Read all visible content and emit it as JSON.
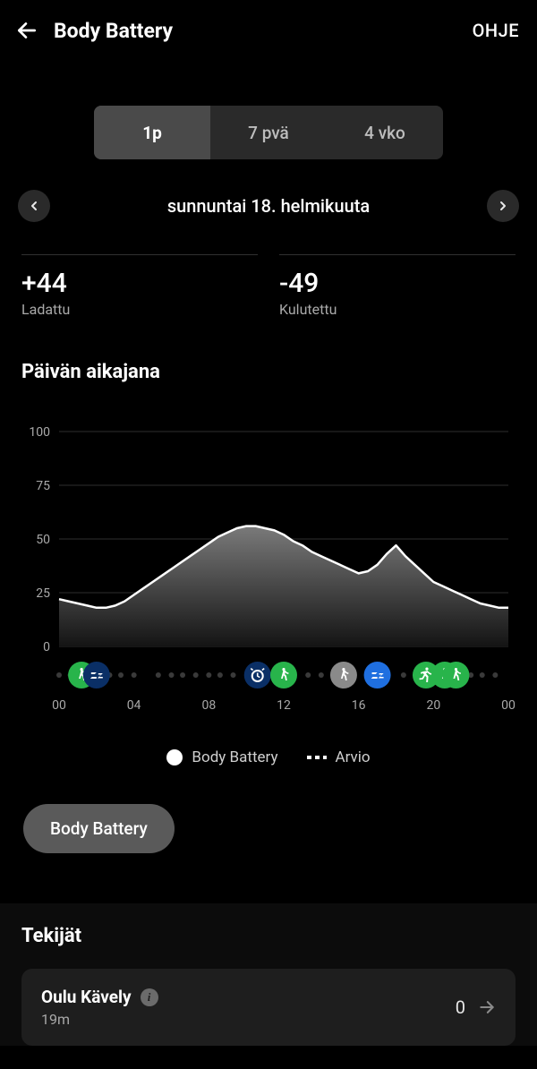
{
  "header": {
    "title": "Body Battery",
    "help": "OHJE"
  },
  "segmented": {
    "items": [
      "1p",
      "7 pvä",
      "4 vko"
    ],
    "active_index": 0
  },
  "date": {
    "label": "sunnuntai 18. helmikuuta"
  },
  "stats": {
    "charged": {
      "value": "+44",
      "label": "Ladattu"
    },
    "drained": {
      "value": "-49",
      "label": "Kulutettu"
    }
  },
  "timeline": {
    "title": "Päivän aikajana",
    "chart": {
      "type": "area",
      "ylim": [
        0,
        100
      ],
      "yticks": [
        0,
        25,
        50,
        75,
        100
      ],
      "xlim_hours": [
        0,
        24
      ],
      "xticks": [
        "00",
        "04",
        "08",
        "12",
        "16",
        "20",
        "00"
      ],
      "line_color": "#ffffff",
      "area_top_color": "#7a7a7a",
      "area_bottom_color": "#141414",
      "grid_color": "#2e2e2e",
      "background_color": "#000000",
      "tick_color": "#a9a9a9",
      "series": [
        {
          "h": 0.0,
          "v": 22
        },
        {
          "h": 0.5,
          "v": 21
        },
        {
          "h": 1.0,
          "v": 20
        },
        {
          "h": 1.5,
          "v": 19
        },
        {
          "h": 2.0,
          "v": 18
        },
        {
          "h": 2.5,
          "v": 18
        },
        {
          "h": 3.0,
          "v": 19
        },
        {
          "h": 3.5,
          "v": 21
        },
        {
          "h": 4.0,
          "v": 24
        },
        {
          "h": 4.5,
          "v": 27
        },
        {
          "h": 5.0,
          "v": 30
        },
        {
          "h": 5.5,
          "v": 33
        },
        {
          "h": 6.0,
          "v": 36
        },
        {
          "h": 6.5,
          "v": 39
        },
        {
          "h": 7.0,
          "v": 42
        },
        {
          "h": 7.5,
          "v": 45
        },
        {
          "h": 8.0,
          "v": 48
        },
        {
          "h": 8.5,
          "v": 51
        },
        {
          "h": 9.0,
          "v": 53
        },
        {
          "h": 9.5,
          "v": 55
        },
        {
          "h": 10.0,
          "v": 56
        },
        {
          "h": 10.5,
          "v": 56
        },
        {
          "h": 11.0,
          "v": 55
        },
        {
          "h": 11.5,
          "v": 54
        },
        {
          "h": 12.0,
          "v": 52
        },
        {
          "h": 12.5,
          "v": 49
        },
        {
          "h": 13.0,
          "v": 47
        },
        {
          "h": 13.5,
          "v": 44
        },
        {
          "h": 14.0,
          "v": 42
        },
        {
          "h": 14.5,
          "v": 40
        },
        {
          "h": 15.0,
          "v": 38
        },
        {
          "h": 15.5,
          "v": 36
        },
        {
          "h": 16.0,
          "v": 34
        },
        {
          "h": 16.5,
          "v": 35
        },
        {
          "h": 17.0,
          "v": 38
        },
        {
          "h": 17.5,
          "v": 43
        },
        {
          "h": 18.0,
          "v": 47
        },
        {
          "h": 18.2,
          "v": 45
        },
        {
          "h": 18.5,
          "v": 42
        },
        {
          "h": 19.0,
          "v": 38
        },
        {
          "h": 19.5,
          "v": 34
        },
        {
          "h": 20.0,
          "v": 30
        },
        {
          "h": 20.5,
          "v": 28
        },
        {
          "h": 21.0,
          "v": 26
        },
        {
          "h": 21.5,
          "v": 24
        },
        {
          "h": 22.0,
          "v": 22
        },
        {
          "h": 22.5,
          "v": 20
        },
        {
          "h": 23.0,
          "v": 19
        },
        {
          "h": 23.5,
          "v": 18
        },
        {
          "h": 24.0,
          "v": 18
        }
      ],
      "events": [
        {
          "h": 1.2,
          "type": "walk",
          "color": "#28b44b"
        },
        {
          "h": 2.0,
          "type": "sleep",
          "color": "#0a2f66"
        },
        {
          "h": 10.6,
          "type": "alarm",
          "color": "#0a2f66"
        },
        {
          "h": 12.0,
          "type": "walk",
          "color": "#28b44b"
        },
        {
          "h": 15.2,
          "type": "walk",
          "color": "#8a8a8a"
        },
        {
          "h": 17.0,
          "type": "sleep",
          "color": "#1f6fe0"
        },
        {
          "h": 19.6,
          "type": "run",
          "color": "#28b44b"
        },
        {
          "h": 20.6,
          "type": "walk",
          "color": "#28b44b"
        },
        {
          "h": 21.2,
          "type": "walk",
          "color": "#28b44b"
        }
      ],
      "event_dot_hours": [
        0,
        0.6,
        2.7,
        3.3,
        4,
        5.3,
        6,
        6.6,
        7.3,
        8,
        8.6,
        9.3,
        13.3,
        14,
        18.4,
        22,
        22.6,
        23.3
      ]
    },
    "legend": {
      "primary": "Body Battery",
      "secondary": "Arvio"
    },
    "button_label": "Body Battery"
  },
  "factors": {
    "title": "Tekijät",
    "items": [
      {
        "title": "Oulu Kävely",
        "subtitle": "19m",
        "value": "0"
      }
    ]
  }
}
